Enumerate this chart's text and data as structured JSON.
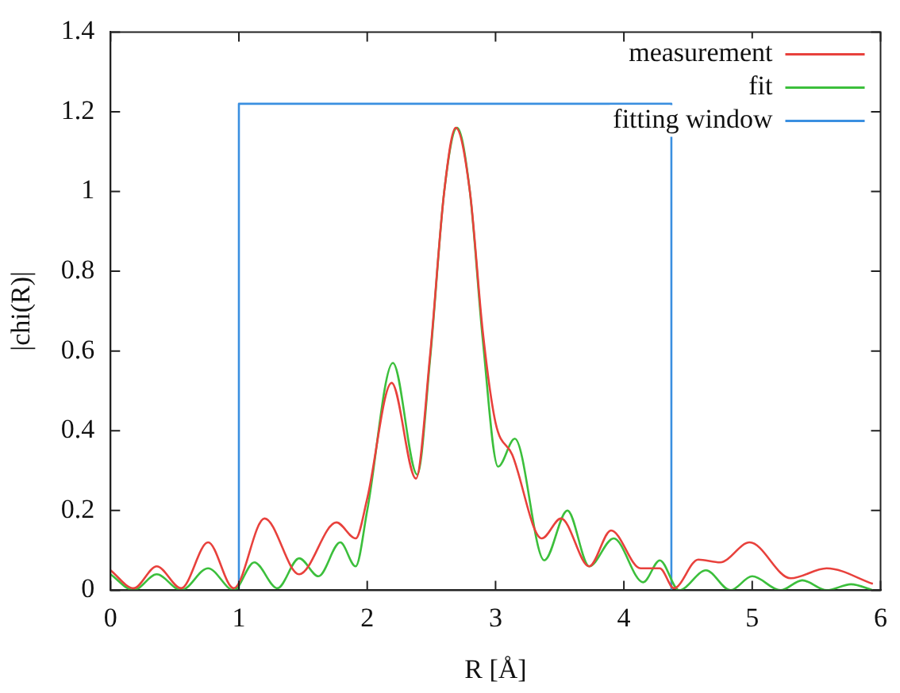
{
  "chart_data": {
    "type": "line",
    "xlabel": "R [Å]",
    "ylabel": "|chi(R)|",
    "xlim": [
      0,
      6
    ],
    "xticks": [
      0,
      1,
      2,
      3,
      4,
      5,
      6
    ],
    "ylim": [
      0,
      1.4
    ],
    "yticks": [
      0,
      0.2,
      0.4,
      0.6,
      0.8,
      1,
      1.2,
      1.4
    ],
    "grid": false,
    "legend": "top right",
    "marker": "none",
    "line_style": "solid",
    "series": [
      {
        "name": "measurement",
        "color": "#e8413c",
        "x": [
          0,
          0.18,
          0.36,
          0.55,
          0.76,
          0.96,
          1.2,
          1.47,
          1.76,
          1.91,
          2.0,
          2.19,
          2.38,
          2.49,
          2.6,
          2.69,
          2.8,
          2.9,
          3.0,
          3.13,
          3.36,
          3.51,
          3.73,
          3.9,
          4.13,
          4.28,
          4.39,
          4.58,
          4.75,
          4.98,
          5.3,
          5.58,
          5.94
        ],
        "values": [
          0.05,
          0.005,
          0.06,
          0.005,
          0.12,
          0.005,
          0.18,
          0.04,
          0.17,
          0.13,
          0.23,
          0.52,
          0.28,
          0.59,
          1.0,
          1.16,
          1.0,
          0.65,
          0.42,
          0.34,
          0.13,
          0.18,
          0.06,
          0.15,
          0.055,
          0.055,
          0.005,
          0.077,
          0.07,
          0.12,
          0.03,
          0.055,
          0.016
        ]
      },
      {
        "name": "fit",
        "color": "#3cbf3c",
        "x": [
          0,
          0.18,
          0.36,
          0.55,
          0.76,
          0.96,
          1.12,
          1.3,
          1.47,
          1.62,
          1.79,
          1.91,
          2.0,
          2.2,
          2.39,
          2.49,
          2.6,
          2.7,
          2.8,
          2.9,
          3.02,
          3.15,
          3.38,
          3.56,
          3.73,
          3.92,
          4.15,
          4.28,
          4.43,
          4.64,
          4.83,
          5.0,
          5.22,
          5.39,
          5.58,
          5.77,
          5.94
        ],
        "values": [
          0.04,
          0,
          0.04,
          0,
          0.055,
          0,
          0.07,
          0.005,
          0.08,
          0.035,
          0.12,
          0.06,
          0.2,
          0.57,
          0.29,
          0.58,
          1.0,
          1.16,
          1.0,
          0.63,
          0.31,
          0.38,
          0.075,
          0.2,
          0.06,
          0.13,
          0.02,
          0.075,
          0,
          0.05,
          0,
          0.035,
          0,
          0.025,
          0,
          0.015,
          0
        ]
      },
      {
        "name": "fitting window",
        "color": "#3a8fe0",
        "x": [
          1,
          1,
          4.37,
          4.37
        ],
        "values": [
          0,
          1.22,
          1.22,
          0
        ]
      }
    ]
  }
}
